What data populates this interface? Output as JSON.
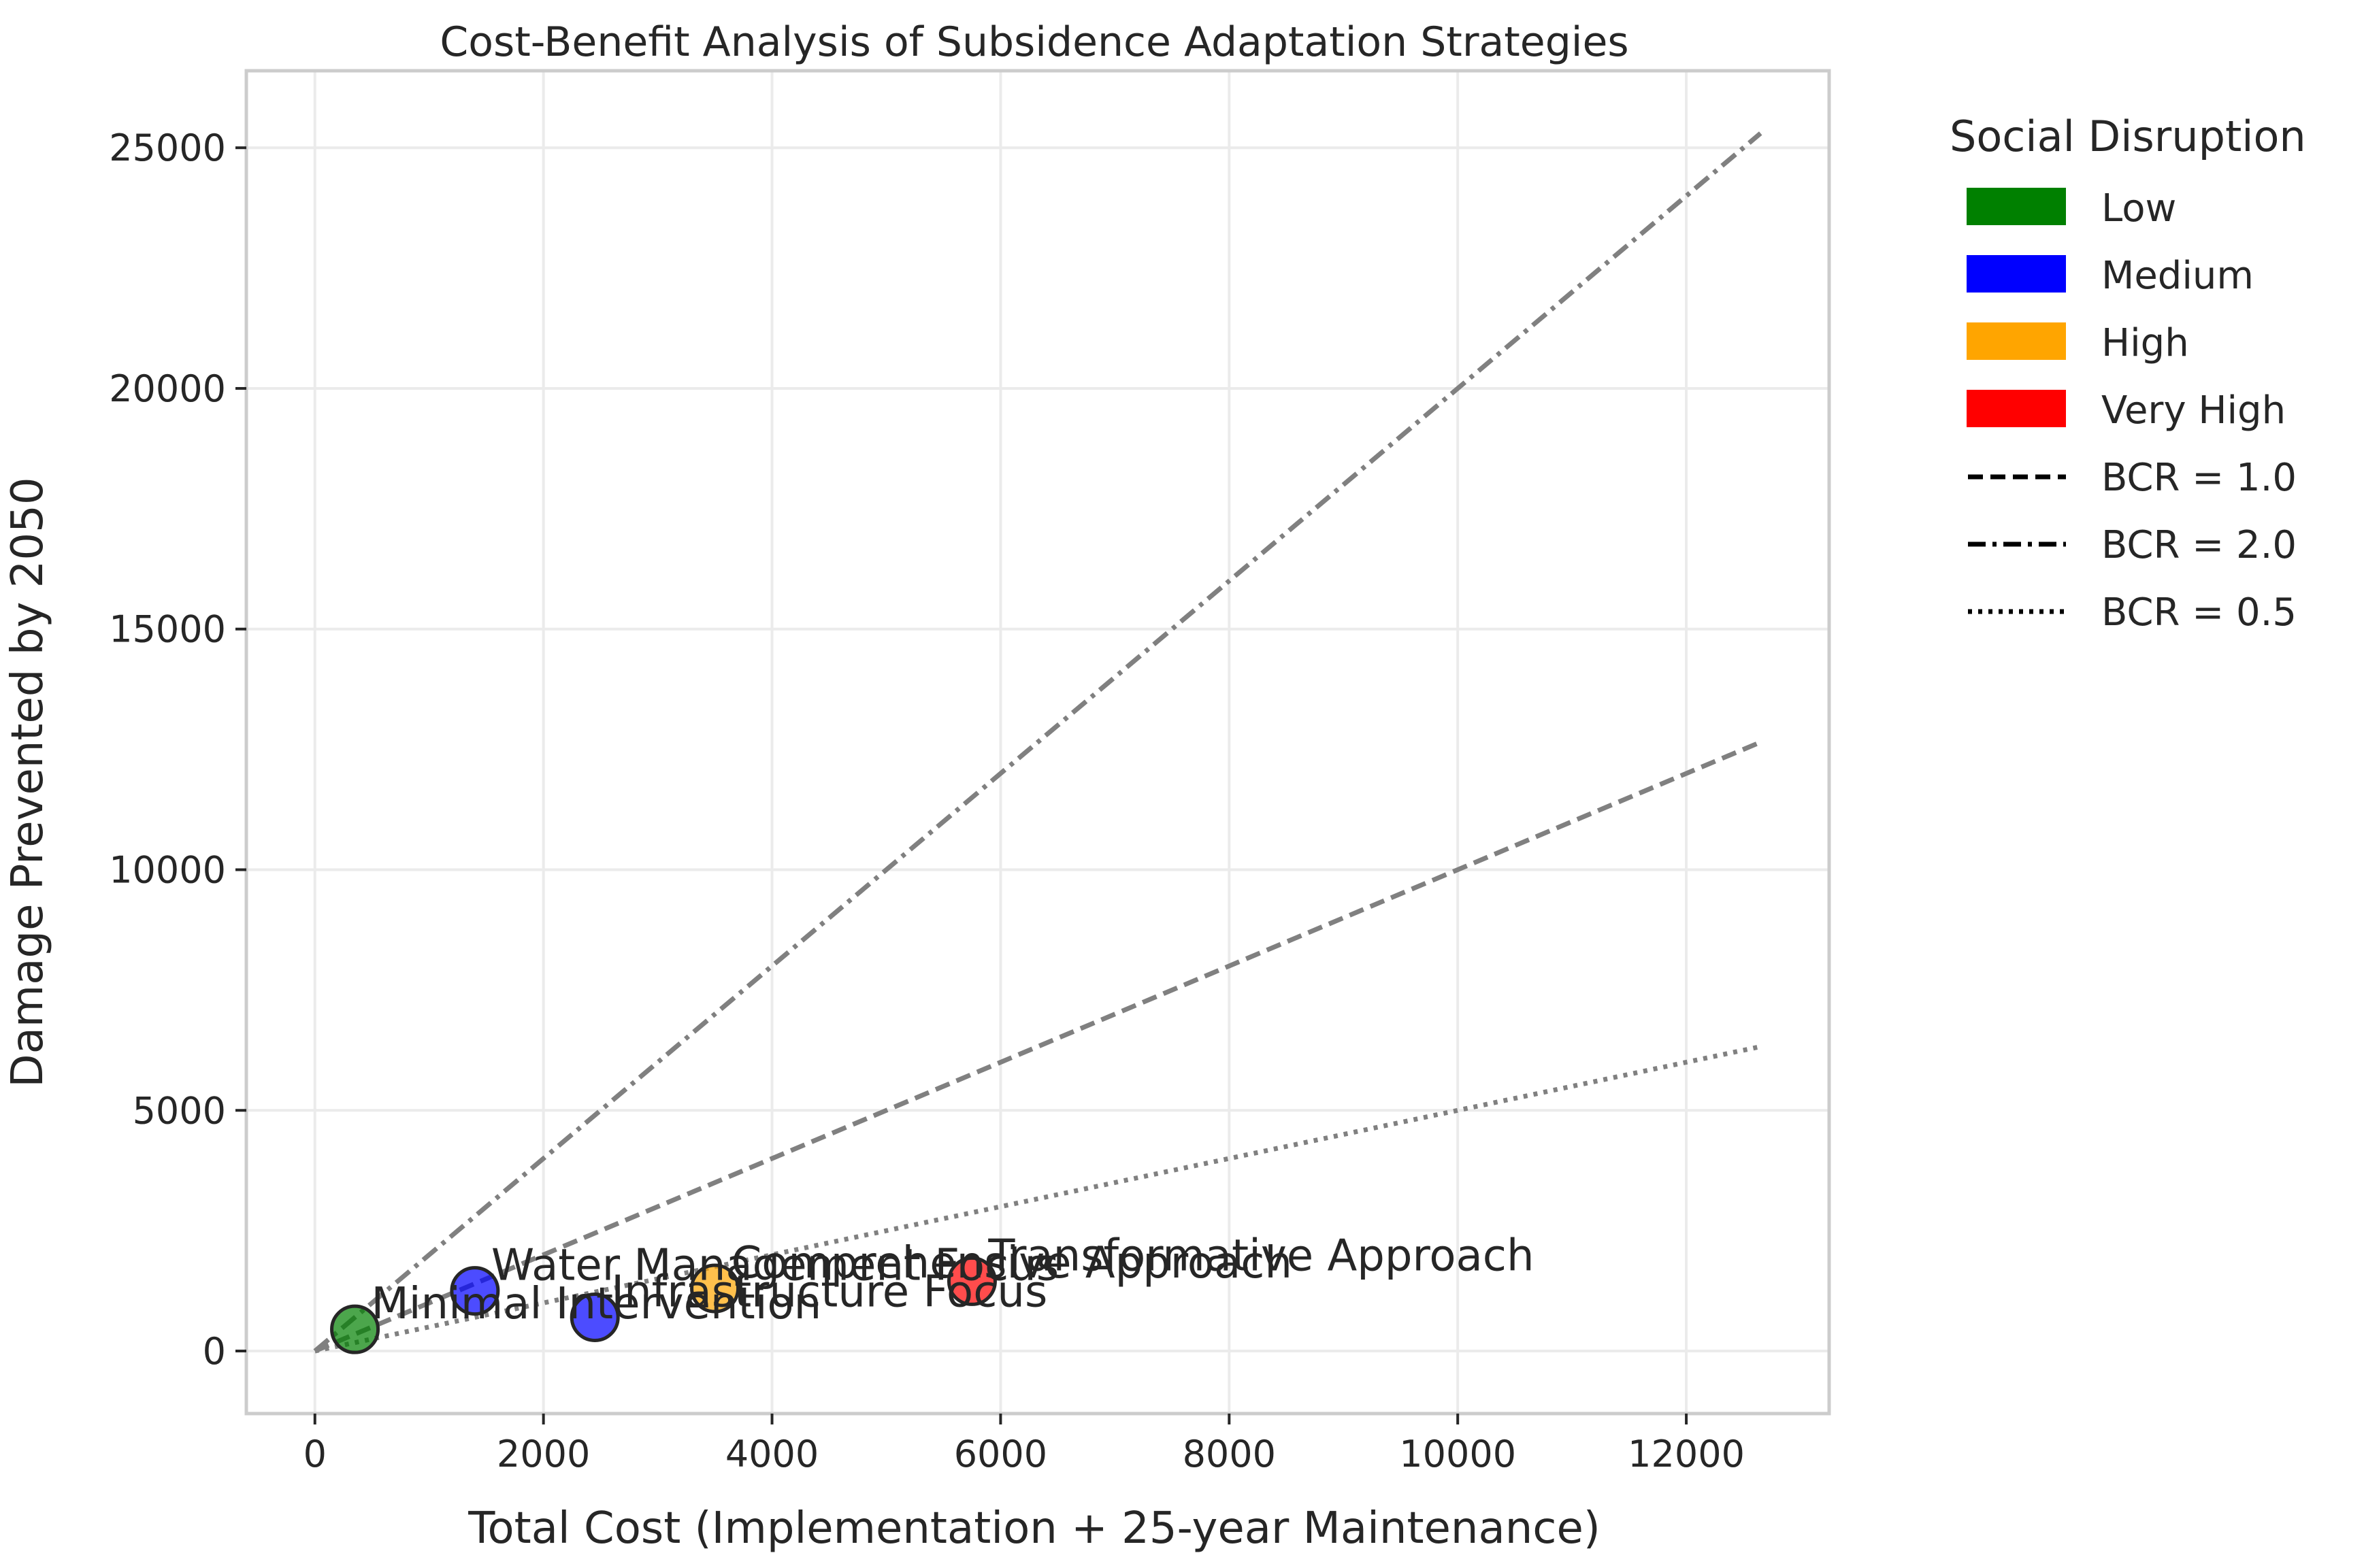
{
  "chart_data": {
    "type": "scatter",
    "title": "Cost-Benefit Analysis of Subsidence Adaptation Strategies",
    "xlabel": "Total Cost (Implementation + 25-year Maintenance)",
    "ylabel": "Damage Prevented by 2050",
    "xlim": [
      -600,
      13250
    ],
    "ylim": [
      -1300,
      26600
    ],
    "xticks": [
      "0",
      "2000",
      "4000",
      "6000",
      "8000",
      "10000",
      "12000"
    ],
    "yticks": [
      "0",
      "5000",
      "10000",
      "15000",
      "20000",
      "25000"
    ],
    "grid": true,
    "points": [
      {
        "label": "Minimal Intervention",
        "x": 350,
        "y": 450,
        "disruption": "Low",
        "color": "#008000"
      },
      {
        "label": "Water Management Focus",
        "x": 1400,
        "y": 1250,
        "disruption": "Medium",
        "color": "#0000ff"
      },
      {
        "label": "Infrastructure Focus",
        "x": 2450,
        "y": 700,
        "disruption": "Medium",
        "color": "#0000ff"
      },
      {
        "label": "Comprehensive Approach",
        "x": 3500,
        "y": 1300,
        "disruption": "High",
        "color": "#ffa500"
      },
      {
        "label": "Transformative Approach",
        "x": 5750,
        "y": 1450,
        "disruption": "Very High",
        "color": "#ff0000"
      }
    ],
    "reference_lines": [
      {
        "label": "BCR = 1.0",
        "slope": 1.0,
        "x_end": 12650,
        "dash": "dashed"
      },
      {
        "label": "BCR = 2.0",
        "slope": 2.0,
        "x_end": 12650,
        "dash": "dashdot"
      },
      {
        "label": "BCR = 0.5",
        "slope": 0.5,
        "x_end": 12650,
        "dash": "dotted"
      }
    ],
    "legend": {
      "title": "Social Disruption",
      "placement": "outside-right",
      "items": [
        {
          "label": "Low",
          "kind": "patch",
          "color": "#008000"
        },
        {
          "label": "Medium",
          "kind": "patch",
          "color": "#0000ff"
        },
        {
          "label": "High",
          "kind": "patch",
          "color": "#ffa500"
        },
        {
          "label": "Very High",
          "kind": "patch",
          "color": "#ff0000"
        },
        {
          "label": "BCR = 1.0",
          "kind": "line",
          "dash": "dashed"
        },
        {
          "label": "BCR = 2.0",
          "kind": "line",
          "dash": "dashdot"
        },
        {
          "label": "BCR = 0.5",
          "kind": "line",
          "dash": "dotted"
        }
      ]
    }
  }
}
